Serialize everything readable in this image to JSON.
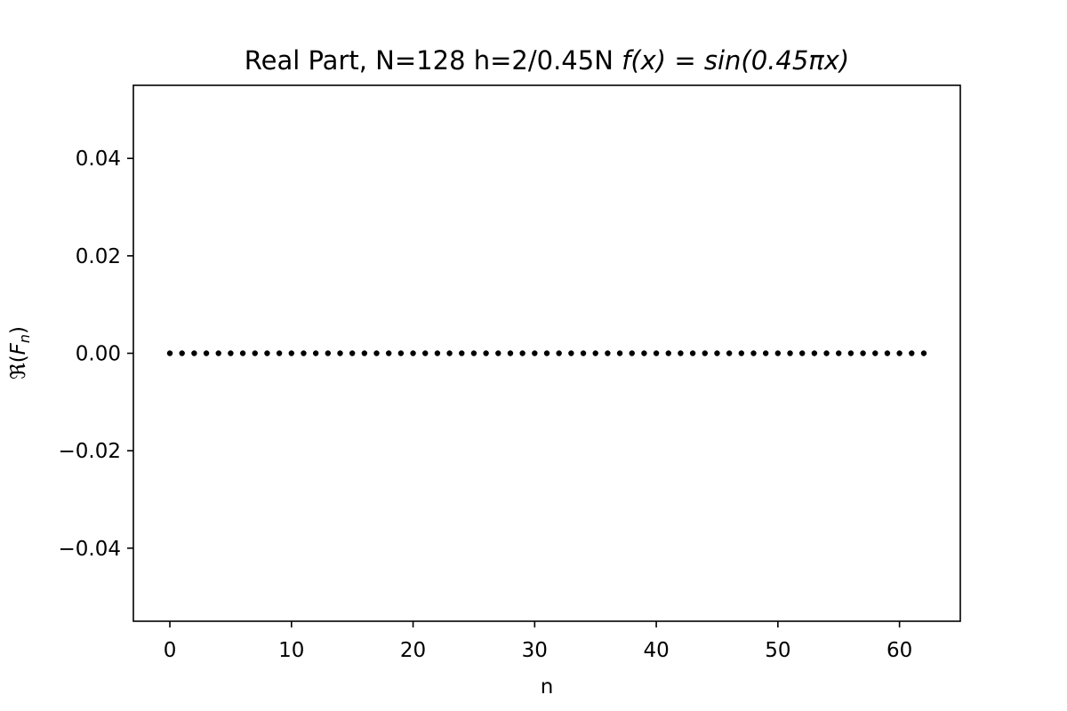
{
  "chart_data": {
    "type": "scatter",
    "title": "Real Part, N=128  h=2/0.45N",
    "title_formula": "f(x) = sin(0.45πx)",
    "xlabel": "n",
    "ylabel": "ℜ(F_n)",
    "xlim": [
      -3,
      65
    ],
    "ylim": [
      -0.055,
      0.055
    ],
    "xticks": [
      0,
      10,
      20,
      30,
      40,
      50,
      60
    ],
    "yticks": [
      0.04,
      0.02,
      0.0,
      -0.02,
      -0.04
    ],
    "xtick_labels": [
      "0",
      "10",
      "20",
      "30",
      "40",
      "50",
      "60"
    ],
    "ytick_labels": [
      "0.04",
      "0.02",
      "0.00",
      "−0.02",
      "−0.04"
    ],
    "grid": false,
    "marker_color": "#000000",
    "series": [
      {
        "x": [
          0,
          1,
          2,
          3,
          4,
          5,
          6,
          7,
          8,
          9,
          10,
          11,
          12,
          13,
          14,
          15,
          16,
          17,
          18,
          19,
          20,
          21,
          22,
          23,
          24,
          25,
          26,
          27,
          28,
          29,
          30,
          31,
          32,
          33,
          34,
          35,
          36,
          37,
          38,
          39,
          40,
          41,
          42,
          43,
          44,
          45,
          46,
          47,
          48,
          49,
          50,
          51,
          52,
          53,
          54,
          55,
          56,
          57,
          58,
          59,
          60,
          61,
          62
        ],
        "y": [
          0,
          0,
          0,
          0,
          0,
          0,
          0,
          0,
          0,
          0,
          0,
          0,
          0,
          0,
          0,
          0,
          0,
          0,
          0,
          0,
          0,
          0,
          0,
          0,
          0,
          0,
          0,
          0,
          0,
          0,
          0,
          0,
          0,
          0,
          0,
          0,
          0,
          0,
          0,
          0,
          0,
          0,
          0,
          0,
          0,
          0,
          0,
          0,
          0,
          0,
          0,
          0,
          0,
          0,
          0,
          0,
          0,
          0,
          0,
          0,
          0,
          0,
          0
        ]
      }
    ]
  }
}
